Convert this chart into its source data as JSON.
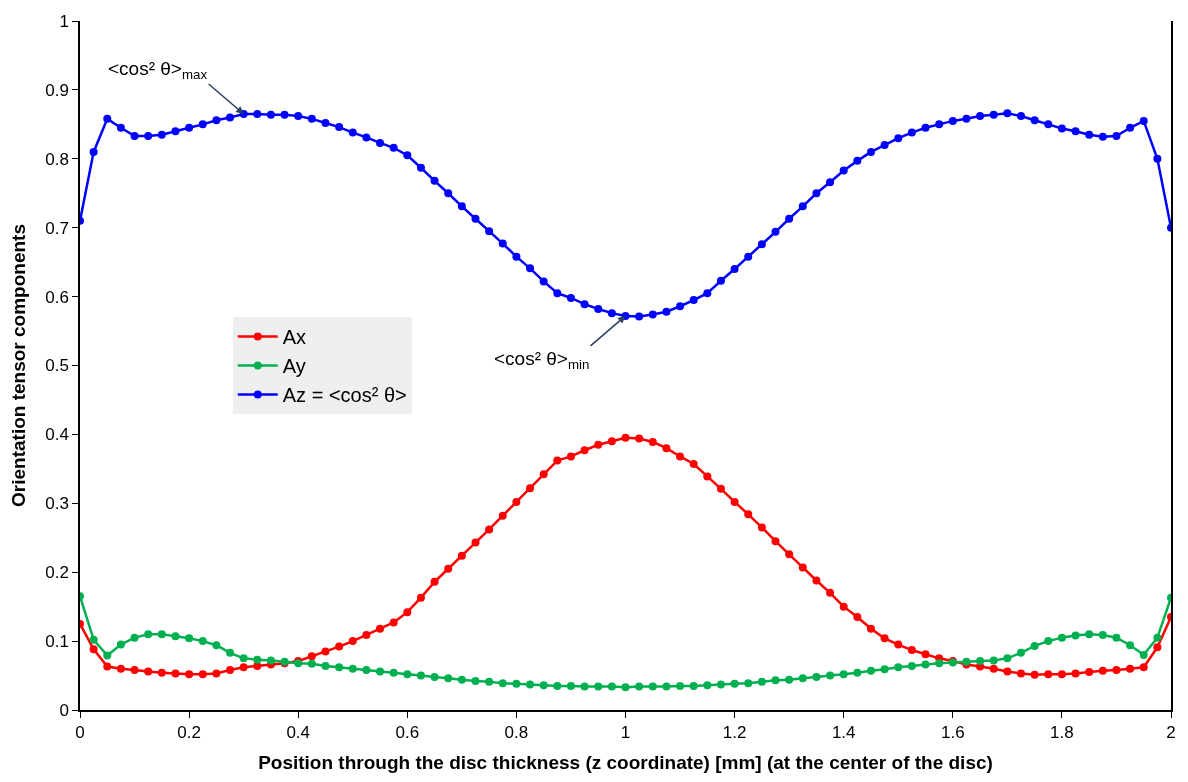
{
  "chart_data": {
    "type": "line",
    "xlabel": "Position through the disc thickness (z coordinate) [mm] (at the center of the disc)",
    "ylabel": "Orientation tensor components",
    "x": [
      0,
      0.025,
      0.05,
      0.075,
      0.1,
      0.125,
      0.15,
      0.175,
      0.2,
      0.225,
      0.25,
      0.275,
      0.3,
      0.325,
      0.35,
      0.375,
      0.4,
      0.425,
      0.45,
      0.475,
      0.5,
      0.525,
      0.55,
      0.575,
      0.6,
      0.625,
      0.65,
      0.675,
      0.7,
      0.725,
      0.75,
      0.775,
      0.8,
      0.825,
      0.85,
      0.875,
      0.9,
      0.925,
      0.95,
      0.975,
      1.0,
      1.025,
      1.05,
      1.075,
      1.1,
      1.125,
      1.15,
      1.175,
      1.2,
      1.225,
      1.25,
      1.275,
      1.3,
      1.325,
      1.35,
      1.375,
      1.4,
      1.425,
      1.45,
      1.475,
      1.5,
      1.525,
      1.55,
      1.575,
      1.6,
      1.625,
      1.65,
      1.675,
      1.7,
      1.725,
      1.75,
      1.775,
      1.8,
      1.825,
      1.85,
      1.875,
      1.9,
      1.925,
      1.95,
      1.975,
      2.0
    ],
    "series": [
      {
        "name": "Ax",
        "color": "#ff0000",
        "values": [
          0.125,
          0.088,
          0.063,
          0.06,
          0.058,
          0.056,
          0.054,
          0.053,
          0.052,
          0.052,
          0.053,
          0.058,
          0.062,
          0.064,
          0.066,
          0.068,
          0.071,
          0.078,
          0.085,
          0.092,
          0.1,
          0.109,
          0.118,
          0.127,
          0.142,
          0.163,
          0.186,
          0.205,
          0.224,
          0.243,
          0.262,
          0.282,
          0.302,
          0.322,
          0.342,
          0.362,
          0.368,
          0.377,
          0.385,
          0.39,
          0.395,
          0.394,
          0.389,
          0.38,
          0.368,
          0.357,
          0.339,
          0.321,
          0.302,
          0.284,
          0.265,
          0.245,
          0.226,
          0.207,
          0.188,
          0.17,
          0.15,
          0.135,
          0.118,
          0.104,
          0.095,
          0.087,
          0.081,
          0.075,
          0.071,
          0.066,
          0.063,
          0.06,
          0.056,
          0.053,
          0.051,
          0.052,
          0.052,
          0.053,
          0.055,
          0.057,
          0.058,
          0.06,
          0.062,
          0.091,
          0.135
        ]
      },
      {
        "name": "Ay",
        "color": "#00b050",
        "values": [
          0.165,
          0.102,
          0.079,
          0.095,
          0.105,
          0.11,
          0.11,
          0.107,
          0.104,
          0.1,
          0.094,
          0.083,
          0.075,
          0.073,
          0.072,
          0.07,
          0.068,
          0.067,
          0.064,
          0.062,
          0.06,
          0.058,
          0.056,
          0.054,
          0.052,
          0.05,
          0.048,
          0.046,
          0.044,
          0.042,
          0.041,
          0.039,
          0.038,
          0.037,
          0.036,
          0.035,
          0.035,
          0.034,
          0.034,
          0.034,
          0.033,
          0.034,
          0.034,
          0.034,
          0.035,
          0.035,
          0.036,
          0.037,
          0.038,
          0.039,
          0.041,
          0.043,
          0.044,
          0.046,
          0.048,
          0.05,
          0.052,
          0.054,
          0.057,
          0.059,
          0.062,
          0.064,
          0.066,
          0.068,
          0.069,
          0.07,
          0.071,
          0.072,
          0.075,
          0.083,
          0.093,
          0.1,
          0.105,
          0.108,
          0.11,
          0.109,
          0.105,
          0.094,
          0.08,
          0.105,
          0.163
        ]
      },
      {
        "name": "Az = <cos² θ>",
        "color": "#0000ff",
        "values": [
          0.71,
          0.81,
          0.858,
          0.845,
          0.833,
          0.833,
          0.835,
          0.84,
          0.845,
          0.85,
          0.856,
          0.86,
          0.865,
          0.865,
          0.864,
          0.864,
          0.862,
          0.858,
          0.852,
          0.846,
          0.838,
          0.831,
          0.823,
          0.816,
          0.805,
          0.787,
          0.768,
          0.75,
          0.731,
          0.713,
          0.695,
          0.677,
          0.658,
          0.641,
          0.622,
          0.605,
          0.598,
          0.589,
          0.582,
          0.576,
          0.572,
          0.571,
          0.574,
          0.578,
          0.586,
          0.595,
          0.605,
          0.623,
          0.64,
          0.658,
          0.676,
          0.694,
          0.713,
          0.731,
          0.75,
          0.766,
          0.783,
          0.797,
          0.81,
          0.82,
          0.83,
          0.838,
          0.845,
          0.85,
          0.855,
          0.858,
          0.862,
          0.864,
          0.866,
          0.862,
          0.856,
          0.85,
          0.844,
          0.84,
          0.835,
          0.832,
          0.833,
          0.845,
          0.855,
          0.8,
          0.7
        ]
      }
    ],
    "xlim": [
      0,
      2
    ],
    "xticks": [
      0,
      0.2,
      0.4,
      0.6,
      0.8,
      1,
      1.2,
      1.4,
      1.6,
      1.8,
      2
    ],
    "ylim": [
      0,
      1
    ],
    "yticks": [
      0,
      0.1,
      0.2,
      0.3,
      0.4,
      0.5,
      0.6,
      0.7,
      0.8,
      0.9,
      1
    ],
    "annotations": [
      {
        "text": "<cos² θ>$_{max}$",
        "x": 0.3,
        "y": 0.865
      },
      {
        "text": "<cos² θ>$_{min}$",
        "x": 1.0,
        "y": 0.572
      }
    ],
    "marker": "circle",
    "line_style": "solid",
    "legend": "left"
  }
}
